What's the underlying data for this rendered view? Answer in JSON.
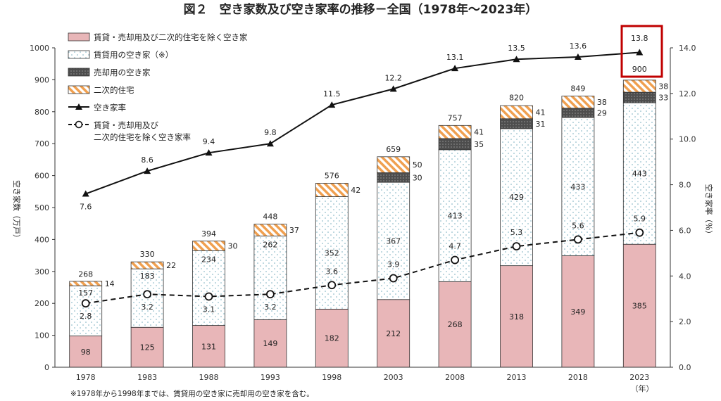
{
  "chart_data": {
    "type": "bar",
    "title": "図２　空き家数及び空き家率の推移－全国（1978年～2023年）",
    "ylabel_left": "空き家数（万戸）",
    "ylabel_right": "空き家率（％）",
    "xunit": "（年）",
    "ylim_left": [
      0,
      1000
    ],
    "yticks_left": [
      "0",
      "100",
      "200",
      "300",
      "400",
      "500",
      "600",
      "700",
      "800",
      "900",
      "1000"
    ],
    "ylim_right": [
      0,
      14
    ],
    "yticks_right": [
      "0.0",
      "2.0",
      "4.0",
      "6.0",
      "8.0",
      "10.0",
      "12.0",
      "14.0"
    ],
    "categories": [
      "1978",
      "1983",
      "1988",
      "1993",
      "1998",
      "2003",
      "2008",
      "2013",
      "2018",
      "2023"
    ],
    "stack": [
      {
        "name": "賃貸・売却用及び二次的住宅を除く空き家",
        "color": "#e8b6b8",
        "values": [
          98,
          125,
          131,
          149,
          182,
          212,
          268,
          318,
          349,
          385
        ],
        "labels": [
          "98",
          "125",
          "131",
          "149",
          "182",
          "212",
          "268",
          "318",
          "349",
          "385"
        ]
      },
      {
        "name": "賃貸用の空き家（※）",
        "color": "#ffffff",
        "values": [
          157,
          183,
          234,
          262,
          352,
          367,
          413,
          429,
          433,
          443
        ],
        "labels": [
          "157",
          "183",
          "234",
          "262",
          "352",
          "367",
          "413",
          "429",
          "433",
          "443"
        ]
      },
      {
        "name": "売却用の空き家",
        "color": "#555555",
        "values": [
          0,
          0,
          0,
          0,
          0,
          30,
          35,
          31,
          29,
          33
        ],
        "labels": [
          "",
          "",
          "",
          "",
          "",
          "30",
          "35",
          "31",
          "29",
          "33"
        ]
      },
      {
        "name": "二次的住宅",
        "color": "#f0a050",
        "values": [
          14,
          22,
          30,
          37,
          42,
          50,
          41,
          41,
          38,
          38
        ],
        "labels": [
          "14",
          "22",
          "30",
          "37",
          "42",
          "50",
          "41",
          "41",
          "38",
          "38"
        ]
      }
    ],
    "totals": [
      "268",
      "330",
      "394",
      "448",
      "576",
      "659",
      "757",
      "820",
      "849",
      "900"
    ],
    "total_values": [
      268,
      330,
      394,
      448,
      576,
      659,
      757,
      820,
      849,
      900
    ],
    "lines": [
      {
        "name": "空き家率",
        "style": "solid-triangle",
        "values": [
          7.6,
          8.6,
          9.4,
          9.8,
          11.5,
          12.2,
          13.1,
          13.5,
          13.6,
          13.8
        ],
        "labels": [
          "7.6",
          "8.6",
          "9.4",
          "9.8",
          "11.5",
          "12.2",
          "13.1",
          "13.5",
          "13.6",
          "13.8"
        ]
      },
      {
        "name": "賃貸・売却用及び二次的住宅を除く空き家率",
        "legend_line1": "賃貸・売却用及び",
        "legend_line2": "二次的住宅を除く空き家率",
        "style": "dashed-circle",
        "values": [
          2.8,
          3.2,
          3.1,
          3.2,
          3.6,
          3.9,
          4.7,
          5.3,
          5.6,
          5.9
        ],
        "labels": [
          "2.8",
          "3.2",
          "3.1",
          "3.2",
          "3.6",
          "3.9",
          "4.7",
          "5.3",
          "5.6",
          "5.9"
        ]
      }
    ],
    "highlight_color": "#c00000",
    "note": "※1978年から1998年までは、賃貸用の空き家に売却用の空き家を含む。"
  }
}
